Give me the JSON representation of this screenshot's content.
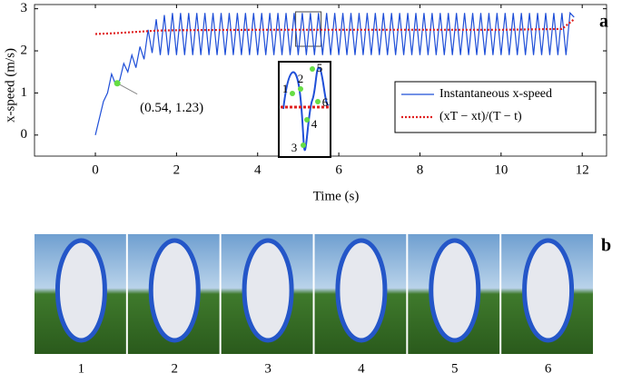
{
  "chart_data": {
    "type": "line",
    "panel_label": "a",
    "xlabel": "Time (s)",
    "ylabel": "x-speed (m/s)",
    "xlim": [
      -1.5,
      12.6
    ],
    "ylim": [
      -0.5,
      3.1
    ],
    "xticks": [
      0,
      2,
      4,
      6,
      8,
      10,
      12
    ],
    "yticks": [
      0,
      1,
      2,
      3
    ],
    "legend_position": "right",
    "series": [
      {
        "name": "Instantaneous x-speed",
        "color": "#1f4fd8",
        "style": "solid",
        "x": [
          0,
          0.1,
          0.2,
          0.3,
          0.4,
          0.5,
          0.6,
          0.7,
          0.8,
          0.9,
          1,
          1.1,
          1.2,
          1.3,
          1.4,
          1.5,
          1.6,
          1.7,
          1.8,
          1.9,
          2,
          2.1,
          2.2,
          2.3,
          2.4,
          2.5,
          2.6,
          2.7,
          2.8,
          2.9,
          3,
          3.1,
          3.2,
          3.3,
          3.4,
          3.5,
          3.6,
          3.7,
          3.8,
          3.9,
          4,
          4.1,
          4.2,
          4.3,
          4.4,
          4.5,
          4.6,
          4.7,
          4.8,
          4.9,
          5,
          5.1,
          5.2,
          5.3,
          5.4,
          5.5,
          5.6,
          5.7,
          5.8,
          5.9,
          6,
          6.1,
          6.2,
          6.3,
          6.4,
          6.5,
          6.6,
          6.7,
          6.8,
          6.9,
          7,
          7.1,
          7.2,
          7.3,
          7.4,
          7.5,
          7.6,
          7.7,
          7.8,
          7.9,
          8,
          8.1,
          8.2,
          8.3,
          8.4,
          8.5,
          8.6,
          8.7,
          8.8,
          8.9,
          9,
          9.1,
          9.2,
          9.3,
          9.4,
          9.5,
          9.6,
          9.7,
          9.8,
          9.9,
          10,
          10.1,
          10.2,
          10.3,
          10.4,
          10.5,
          10.6,
          10.7,
          10.8,
          10.9,
          11,
          11.1,
          11.2,
          11.3,
          11.4,
          11.5,
          11.6,
          11.7,
          11.8
        ],
        "values": [
          0,
          0.4,
          0.8,
          1.0,
          1.45,
          1.2,
          1.3,
          1.7,
          1.5,
          1.9,
          1.6,
          2.1,
          1.8,
          2.5,
          1.95,
          2.75,
          1.9,
          2.85,
          1.9,
          2.9,
          1.9,
          2.9,
          1.9,
          2.9,
          1.9,
          2.9,
          1.9,
          2.9,
          1.9,
          2.9,
          1.9,
          2.9,
          1.9,
          2.9,
          1.9,
          2.9,
          1.9,
          2.9,
          1.9,
          2.9,
          1.9,
          2.9,
          1.9,
          2.9,
          1.9,
          2.9,
          1.9,
          2.9,
          1.9,
          2.9,
          1.9,
          2.9,
          1.9,
          2.9,
          1.9,
          2.9,
          1.9,
          2.9,
          1.9,
          2.9,
          1.9,
          2.9,
          1.9,
          2.9,
          1.9,
          2.9,
          1.9,
          2.9,
          1.9,
          2.9,
          1.9,
          2.9,
          1.9,
          2.9,
          1.9,
          2.9,
          1.9,
          2.9,
          1.9,
          2.9,
          1.9,
          2.9,
          1.9,
          2.9,
          1.9,
          2.9,
          1.9,
          2.9,
          1.9,
          2.9,
          1.9,
          2.9,
          1.9,
          2.9,
          1.9,
          2.9,
          1.9,
          2.9,
          1.9,
          2.9,
          1.9,
          2.9,
          1.9,
          2.9,
          1.9,
          2.9,
          1.9,
          2.9,
          1.9,
          2.9,
          1.9,
          2.9,
          1.9,
          2.9,
          1.9,
          2.9,
          1.9,
          2.9,
          2.8
        ]
      },
      {
        "name": "(xT − xt)/(T − t)",
        "color": "#e02020",
        "style": "dotted",
        "x": [
          0,
          0.5,
          1,
          1.5,
          2,
          4,
          6,
          8,
          10,
          11.5,
          11.8
        ],
        "values": [
          2.4,
          2.42,
          2.45,
          2.48,
          2.49,
          2.5,
          2.5,
          2.5,
          2.5,
          2.52,
          2.75
        ]
      }
    ],
    "annotation": {
      "text": "(0.54, 1.23)",
      "x": 0.54,
      "y": 1.23
    },
    "inset_labels": [
      "1",
      "2",
      "3",
      "4",
      "5",
      "6"
    ]
  },
  "frames": {
    "panel_label": "b",
    "labels": [
      "1",
      "2",
      "3",
      "4",
      "5",
      "6"
    ]
  }
}
